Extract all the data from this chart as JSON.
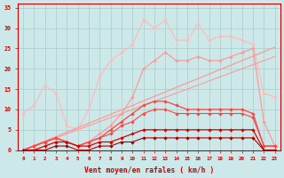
{
  "x": [
    0,
    1,
    2,
    3,
    4,
    5,
    6,
    7,
    8,
    9,
    10,
    11,
    12,
    13,
    14,
    15,
    16,
    17,
    18,
    19,
    20,
    21,
    22,
    23
  ],
  "bg_color": "#cce8e8",
  "grid_color": "#aacccc",
  "xlabel": "Vent moyen/en rafales ( km/h )",
  "ylim": [
    0,
    36
  ],
  "yticks": [
    0,
    5,
    10,
    15,
    20,
    25,
    30,
    35
  ],
  "tick_color": "#cc0000",
  "line_lightpink_y": [
    9,
    11,
    16,
    14,
    6,
    5,
    10,
    18,
    22,
    24,
    26,
    32,
    30,
    32,
    27,
    27,
    31,
    27,
    28,
    28,
    27,
    26,
    14,
    13
  ],
  "line_pink_straight1": [
    0,
    1.1,
    2.2,
    3.3,
    4.4,
    5.5,
    6.6,
    7.7,
    8.8,
    9.9,
    11.0,
    12.1,
    13.2,
    14.3,
    15.4,
    16.5,
    17.6,
    18.7,
    19.8,
    20.9,
    22.0,
    23.1,
    24.2,
    25.3
  ],
  "line_pink_straight2": [
    0,
    1.0,
    2.0,
    3.0,
    4.0,
    5.0,
    6.0,
    7.0,
    8.0,
    9.0,
    10.0,
    11.0,
    12.0,
    13.0,
    14.0,
    15.0,
    16.0,
    17.0,
    18.0,
    19.0,
    20.0,
    21.0,
    22.0,
    23.0
  ],
  "line_pink_zigzag_y": [
    0,
    1,
    2,
    3,
    2,
    1,
    2,
    4,
    6,
    9,
    13,
    20,
    22,
    24,
    22,
    22,
    23,
    22,
    22,
    23,
    24,
    25,
    7,
    1
  ],
  "line_med_red_y": [
    0,
    1,
    2,
    3,
    2,
    1,
    2,
    3,
    5,
    7,
    9,
    11,
    12,
    12,
    11,
    10,
    10,
    10,
    10,
    10,
    10,
    9,
    1,
    1
  ],
  "line_med_red2_y": [
    0,
    1,
    2,
    3,
    2,
    1,
    2,
    3,
    4,
    6,
    7,
    9,
    10,
    10,
    9,
    9,
    9,
    9,
    9,
    9,
    9,
    8,
    1,
    1
  ],
  "line_dk_red1_y": [
    0,
    0,
    1,
    2,
    2,
    1,
    1,
    2,
    2,
    3,
    4,
    5,
    5,
    5,
    5,
    5,
    5,
    5,
    5,
    5,
    5,
    5,
    0,
    0
  ],
  "line_dk_red2_y": [
    0,
    0,
    0,
    1,
    1,
    0,
    0,
    1,
    1,
    2,
    2,
    3,
    3,
    3,
    3,
    3,
    3,
    3,
    3,
    3,
    3,
    3,
    0,
    0
  ],
  "color_lightpink": "#ffbbbb",
  "color_pink": "#ff9999",
  "color_med_red": "#ff4444",
  "color_dk_red": "#dd0000",
  "color_vdk_red": "#aa0000"
}
